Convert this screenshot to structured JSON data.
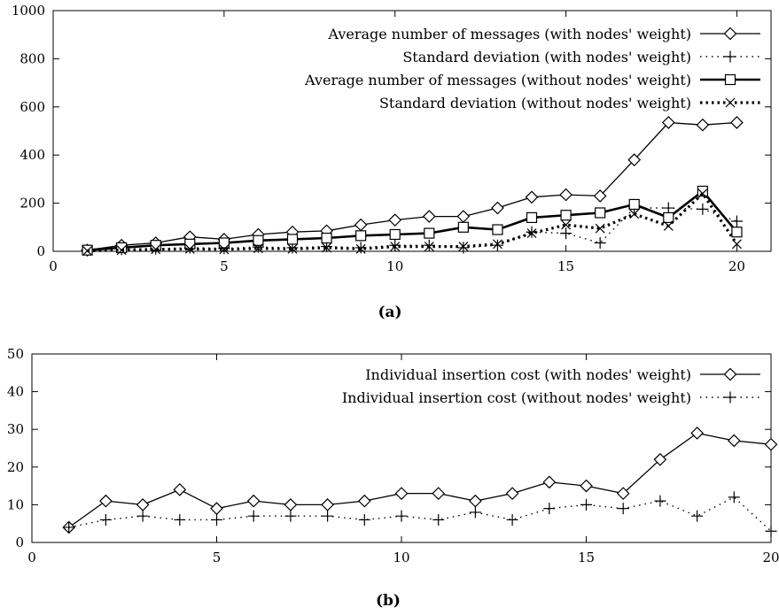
{
  "chart_data": [
    {
      "type": "line",
      "caption": "(a)",
      "xlim": [
        0,
        21
      ],
      "ylim": [
        0,
        1000
      ],
      "xticks": [
        0,
        5,
        10,
        15,
        20
      ],
      "yticks": [
        0,
        200,
        400,
        600,
        800,
        1000
      ],
      "legend_position": "top-right",
      "series": [
        {
          "name": "Average number of messages (with nodes' weight)",
          "style": "solid-thin",
          "marker": "diamond",
          "x": [
            1,
            2,
            3,
            4,
            5,
            6,
            7,
            8,
            9,
            10,
            11,
            12,
            13,
            14,
            15,
            16,
            17,
            18,
            19,
            20
          ],
          "y": [
            5,
            25,
            35,
            60,
            50,
            70,
            80,
            85,
            110,
            130,
            145,
            145,
            180,
            225,
            235,
            230,
            380,
            535,
            525,
            535
          ]
        },
        {
          "name": "Standard deviation (with nodes' weight)",
          "style": "dotted-thin",
          "marker": "plus",
          "x": [
            1,
            2,
            3,
            4,
            5,
            6,
            7,
            8,
            9,
            10,
            11,
            12,
            13,
            14,
            15,
            16,
            17,
            18,
            19,
            20
          ],
          "y": [
            3,
            8,
            10,
            15,
            12,
            18,
            15,
            20,
            15,
            25,
            25,
            15,
            25,
            80,
            75,
            35,
            180,
            180,
            175,
            125
          ]
        },
        {
          "name": "Average number of messages (without nodes' weight)",
          "style": "solid-thick",
          "marker": "square",
          "x": [
            1,
            2,
            3,
            4,
            5,
            6,
            7,
            8,
            9,
            10,
            11,
            12,
            13,
            14,
            15,
            16,
            17,
            18,
            19,
            20
          ],
          "y": [
            5,
            15,
            25,
            30,
            35,
            45,
            50,
            55,
            65,
            70,
            75,
            100,
            90,
            140,
            150,
            160,
            195,
            140,
            250,
            80
          ]
        },
        {
          "name": "Standard deviation (without nodes' weight)",
          "style": "dotted-thick",
          "marker": "cross",
          "x": [
            1,
            2,
            3,
            4,
            5,
            6,
            7,
            8,
            9,
            10,
            11,
            12,
            13,
            14,
            15,
            16,
            17,
            18,
            19,
            20
          ],
          "y": [
            2,
            5,
            8,
            10,
            8,
            12,
            10,
            15,
            10,
            20,
            20,
            20,
            30,
            75,
            110,
            95,
            155,
            105,
            240,
            30
          ]
        }
      ]
    },
    {
      "type": "line",
      "caption": "(b)",
      "xlim": [
        0,
        20
      ],
      "ylim": [
        0,
        50
      ],
      "xticks": [
        0,
        5,
        10,
        15,
        20
      ],
      "yticks": [
        0,
        10,
        20,
        30,
        40,
        50
      ],
      "legend_position": "top-right",
      "series": [
        {
          "name": "Individual insertion cost (with nodes' weight)",
          "style": "solid-thin",
          "marker": "diamond",
          "x": [
            1,
            2,
            3,
            4,
            5,
            6,
            7,
            8,
            9,
            10,
            11,
            12,
            13,
            14,
            15,
            16,
            17,
            18,
            19,
            20
          ],
          "y": [
            4,
            11,
            10,
            14,
            9,
            11,
            10,
            10,
            11,
            13,
            13,
            11,
            13,
            16,
            15,
            13,
            22,
            29,
            27,
            26
          ]
        },
        {
          "name": "Individual insertion cost (without nodes' weight)",
          "style": "dotted-thin",
          "marker": "plus",
          "x": [
            1,
            2,
            3,
            4,
            5,
            6,
            7,
            8,
            9,
            10,
            11,
            12,
            13,
            14,
            15,
            16,
            17,
            18,
            19,
            20
          ],
          "y": [
            4,
            6,
            7,
            6,
            6,
            7,
            7,
            7,
            6,
            7,
            6,
            8,
            6,
            9,
            10,
            9,
            11,
            7,
            12,
            3
          ]
        }
      ]
    }
  ]
}
